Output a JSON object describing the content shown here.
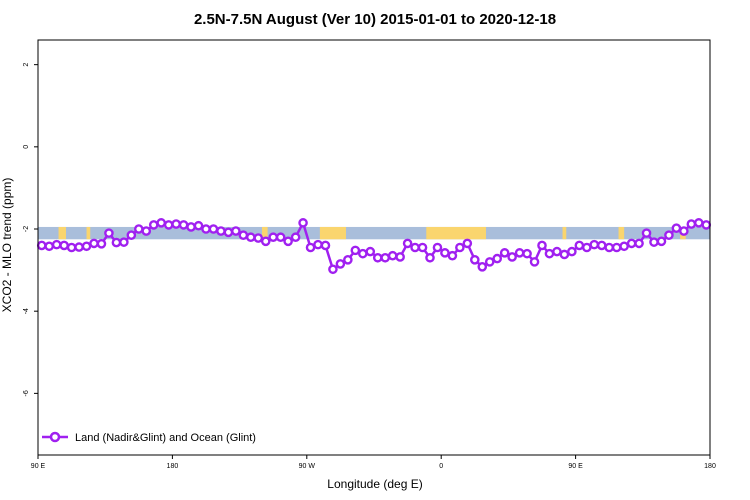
{
  "chart_data": {
    "type": "line",
    "title": "2.5N-7.5N August (Ver 10)   2015-01-01 to 2020-12-18",
    "xlabel": "Longitude (deg E)",
    "ylabel": "XCO2 - MLO trend (ppm)",
    "xlim": [
      90,
      450
    ],
    "ylim": [
      -7.5,
      2.6
    ],
    "x_ticks": [
      {
        "value": 90,
        "label": "90 E"
      },
      {
        "value": 162,
        "label": "180"
      },
      {
        "value": 234,
        "label": "90 W"
      },
      {
        "value": 306,
        "label": "0"
      },
      {
        "value": 378,
        "label": "90 E"
      },
      {
        "value": 450,
        "label": "180"
      }
    ],
    "y_ticks": [
      {
        "value": 2,
        "label": "2"
      },
      {
        "value": 0,
        "label": "0"
      },
      {
        "value": -2,
        "label": "-2"
      },
      {
        "value": -4,
        "label": "-4"
      },
      {
        "value": -6,
        "label": "-6"
      }
    ],
    "series": [
      {
        "name": "Land (Nadir&Glint) and Ocean (Glint)",
        "color": "#a020f0",
        "x": [
          92,
          96,
          100,
          104,
          108,
          112,
          116,
          120,
          124,
          128,
          132,
          136,
          140,
          144,
          148,
          152,
          156,
          160,
          164,
          168,
          172,
          176,
          180,
          184,
          188,
          192,
          196,
          200,
          204,
          208,
          212,
          216,
          220,
          224,
          228,
          232,
          236,
          240,
          244,
          248,
          252,
          256,
          260,
          264,
          268,
          272,
          276,
          280,
          284,
          288,
          292,
          296,
          300,
          304,
          308,
          312,
          316,
          320,
          324,
          328,
          332,
          336,
          340,
          344,
          348,
          352,
          356,
          360,
          364,
          368,
          372,
          376,
          380,
          384,
          388,
          392,
          396,
          400,
          404,
          408,
          412,
          416,
          420,
          424,
          428,
          432,
          436,
          440,
          444,
          448
        ],
        "y": [
          -2.4,
          -2.42,
          -2.38,
          -2.4,
          -2.45,
          -2.44,
          -2.42,
          -2.35,
          -2.36,
          -2.1,
          -2.33,
          -2.32,
          -2.15,
          -2.0,
          -2.05,
          -1.9,
          -1.85,
          -1.9,
          -1.88,
          -1.9,
          -1.95,
          -1.92,
          -2.0,
          -2.0,
          -2.05,
          -2.08,
          -2.05,
          -2.15,
          -2.2,
          -2.22,
          -2.3,
          -2.2,
          -2.2,
          -2.3,
          -2.2,
          -1.85,
          -2.45,
          -2.38,
          -2.4,
          -2.98,
          -2.85,
          -2.75,
          -2.52,
          -2.6,
          -2.55,
          -2.7,
          -2.7,
          -2.65,
          -2.68,
          -2.35,
          -2.45,
          -2.45,
          -2.7,
          -2.45,
          -2.58,
          -2.65,
          -2.45,
          -2.35,
          -2.75,
          -2.92,
          -2.8,
          -2.72,
          -2.58,
          -2.68,
          -2.58,
          -2.6,
          -2.8,
          -2.4,
          -2.6,
          -2.55,
          -2.62,
          -2.55,
          -2.4,
          -2.45,
          -2.38,
          -2.4,
          -2.45,
          -2.45,
          -2.42,
          -2.35,
          -2.35,
          -2.1,
          -2.32,
          -2.3,
          -2.15,
          -1.98,
          -2.05,
          -1.88,
          -1.85,
          -1.9
        ]
      }
    ],
    "background_band": {
      "y_range": [
        -2.25,
        -1.95
      ],
      "ocean_color": "#a9bedb",
      "land_color": "#fad56e",
      "land_segments": [
        [
          101,
          105
        ],
        [
          116,
          118
        ],
        [
          210,
          213
        ],
        [
          241,
          255
        ],
        [
          298,
          330
        ],
        [
          371,
          373
        ],
        [
          401,
          404
        ],
        [
          434,
          437
        ]
      ]
    },
    "legend": {
      "position": "bottom-left"
    },
    "grid": false
  }
}
